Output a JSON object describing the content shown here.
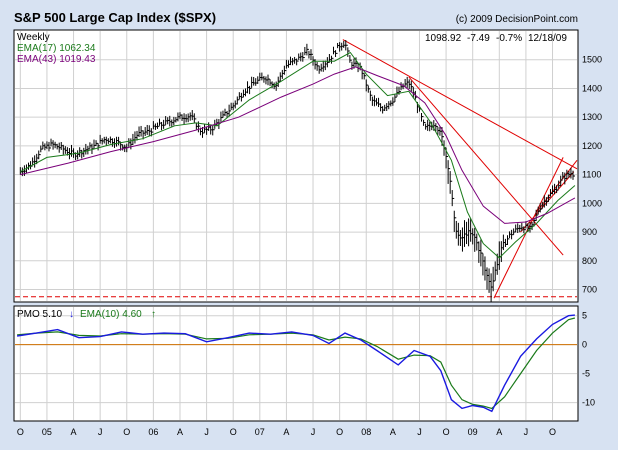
{
  "chart_data": [
    {
      "type": "line",
      "chart_style": "weekly price bars (high-low-close) with moving averages and trendlines",
      "title": "S&P 500 Large Cap Index ($SPX)",
      "copyright": "(c) 2009 DecisionPoint.com",
      "period": "Weekly",
      "quote": {
        "last": "1098.92",
        "change": "-7.49",
        "pct": "-0.7%",
        "date": "12/18/09"
      },
      "indicators": [
        {
          "label": "EMA(17) 1062.34",
          "color": "#1a7a1a"
        },
        {
          "label": "EMA(43) 1019.43",
          "color": "#7a007a"
        }
      ],
      "price_color": "#000000",
      "trendline_color": "#e00000",
      "ylim": [
        660,
        1600
      ],
      "yticks": [
        700,
        800,
        900,
        1000,
        1100,
        1200,
        1300,
        1400,
        1500
      ],
      "y_axis_side": "right",
      "support_level": 675,
      "x_time_range": [
        2004.7,
        2009.98
      ],
      "price_series": [
        [
          2004.75,
          1110
        ],
        [
          2004.85,
          1135
        ],
        [
          2004.95,
          1190
        ],
        [
          2005.05,
          1205
        ],
        [
          2005.15,
          1190
        ],
        [
          2005.25,
          1170
        ],
        [
          2005.35,
          1185
        ],
        [
          2005.45,
          1200
        ],
        [
          2005.55,
          1225
        ],
        [
          2005.65,
          1215
        ],
        [
          2005.75,
          1195
        ],
        [
          2005.85,
          1240
        ],
        [
          2005.95,
          1250
        ],
        [
          2006.05,
          1270
        ],
        [
          2006.15,
          1285
        ],
        [
          2006.25,
          1300
        ],
        [
          2006.35,
          1305
        ],
        [
          2006.45,
          1250
        ],
        [
          2006.55,
          1260
        ],
        [
          2006.65,
          1300
        ],
        [
          2006.75,
          1340
        ],
        [
          2006.85,
          1390
        ],
        [
          2006.95,
          1420
        ],
        [
          2007.05,
          1440
        ],
        [
          2007.15,
          1410
        ],
        [
          2007.25,
          1480
        ],
        [
          2007.35,
          1500
        ],
        [
          2007.45,
          1530
        ],
        [
          2007.55,
          1470
        ],
        [
          2007.65,
          1500
        ],
        [
          2007.75,
          1550
        ],
        [
          2007.8,
          1560
        ],
        [
          2007.85,
          1490
        ],
        [
          2007.95,
          1470
        ],
        [
          2008.05,
          1360
        ],
        [
          2008.15,
          1330
        ],
        [
          2008.25,
          1360
        ],
        [
          2008.35,
          1410
        ],
        [
          2008.4,
          1420
        ],
        [
          2008.45,
          1380
        ],
        [
          2008.55,
          1260
        ],
        [
          2008.65,
          1280
        ],
        [
          2008.72,
          1220
        ],
        [
          2008.78,
          1110
        ],
        [
          2008.83,
          930
        ],
        [
          2008.88,
          870
        ],
        [
          2008.95,
          900
        ],
        [
          2009.02,
          880
        ],
        [
          2009.08,
          820
        ],
        [
          2009.12,
          760
        ],
        [
          2009.18,
          710
        ],
        [
          2009.22,
          780
        ],
        [
          2009.28,
          850
        ],
        [
          2009.35,
          890
        ],
        [
          2009.45,
          920
        ],
        [
          2009.55,
          910
        ],
        [
          2009.62,
          980
        ],
        [
          2009.7,
          1020
        ],
        [
          2009.78,
          1050
        ],
        [
          2009.85,
          1090
        ],
        [
          2009.92,
          1105
        ],
        [
          2009.96,
          1099
        ]
      ],
      "ema_17": [
        [
          2004.75,
          1110
        ],
        [
          2005.0,
          1160
        ],
        [
          2005.3,
          1175
        ],
        [
          2005.6,
          1205
        ],
        [
          2005.9,
          1225
        ],
        [
          2006.2,
          1270
        ],
        [
          2006.4,
          1280
        ],
        [
          2006.6,
          1270
        ],
        [
          2006.9,
          1360
        ],
        [
          2007.2,
          1425
        ],
        [
          2007.5,
          1495
        ],
        [
          2007.7,
          1495
        ],
        [
          2007.85,
          1525
        ],
        [
          2008.0,
          1450
        ],
        [
          2008.2,
          1375
        ],
        [
          2008.4,
          1390
        ],
        [
          2008.6,
          1285
        ],
        [
          2008.8,
          1150
        ],
        [
          2008.95,
          970
        ],
        [
          2009.1,
          860
        ],
        [
          2009.25,
          810
        ],
        [
          2009.4,
          865
        ],
        [
          2009.6,
          930
        ],
        [
          2009.8,
          1010
        ],
        [
          2009.96,
          1062
        ]
      ],
      "ema_43": [
        [
          2004.75,
          1100
        ],
        [
          2005.2,
          1140
        ],
        [
          2005.6,
          1180
        ],
        [
          2006.0,
          1215
        ],
        [
          2006.4,
          1255
        ],
        [
          2006.8,
          1300
        ],
        [
          2007.2,
          1370
        ],
        [
          2007.5,
          1415
        ],
        [
          2007.7,
          1450
        ],
        [
          2007.9,
          1475
        ],
        [
          2008.1,
          1445
        ],
        [
          2008.35,
          1410
        ],
        [
          2008.55,
          1350
        ],
        [
          2008.75,
          1235
        ],
        [
          2008.9,
          1115
        ],
        [
          2009.1,
          990
        ],
        [
          2009.3,
          930
        ],
        [
          2009.5,
          935
        ],
        [
          2009.7,
          965
        ],
        [
          2009.96,
          1019
        ]
      ],
      "trendlines": [
        [
          [
            2007.78,
            1570
          ],
          [
            2009.98,
            1120
          ]
        ],
        [
          [
            2008.4,
            1440
          ],
          [
            2009.85,
            820
          ]
        ],
        [
          [
            2009.2,
            670
          ],
          [
            2009.85,
            1160
          ]
        ],
        [
          [
            2009.6,
            970
          ],
          [
            2009.98,
            1150
          ]
        ],
        [
          [
            2009.45,
            900
          ],
          [
            2009.95,
            1110
          ]
        ]
      ]
    },
    {
      "type": "line",
      "indicators": [
        {
          "label": "PMO 5.10",
          "color": "#1a1ae0",
          "arrow": "↓"
        },
        {
          "label": "EMA(10) 4.60",
          "color": "#1a7a1a",
          "arrow": "↑"
        }
      ],
      "ylim": [
        -13,
        6.5
      ],
      "yticks": [
        -10,
        -5,
        0,
        5
      ],
      "zero_line_color": "#d07000",
      "x_labels": [
        "O",
        "05",
        "A",
        "J",
        "O",
        "06",
        "A",
        "J",
        "O",
        "07",
        "A",
        "J",
        "O",
        "08",
        "A",
        "J",
        "O",
        "09",
        "A",
        "J",
        "O"
      ],
      "x_label_dates": [
        2004.75,
        2005.0,
        2005.25,
        2005.5,
        2005.75,
        2006.0,
        2006.25,
        2006.5,
        2006.75,
        2007.0,
        2007.25,
        2007.5,
        2007.75,
        2008.0,
        2008.25,
        2008.5,
        2008.75,
        2009.0,
        2009.25,
        2009.5,
        2009.75
      ],
      "pmo": [
        [
          2004.72,
          1.5
        ],
        [
          2004.9,
          2.0
        ],
        [
          2005.1,
          2.6
        ],
        [
          2005.3,
          1.2
        ],
        [
          2005.5,
          1.4
        ],
        [
          2005.7,
          2.2
        ],
        [
          2005.9,
          1.8
        ],
        [
          2006.1,
          2.0
        ],
        [
          2006.3,
          1.9
        ],
        [
          2006.5,
          0.5
        ],
        [
          2006.7,
          1.2
        ],
        [
          2006.9,
          2.0
        ],
        [
          2007.1,
          1.8
        ],
        [
          2007.3,
          2.2
        ],
        [
          2007.5,
          1.6
        ],
        [
          2007.65,
          0.2
        ],
        [
          2007.8,
          2.0
        ],
        [
          2007.95,
          0.8
        ],
        [
          2008.1,
          -1.0
        ],
        [
          2008.3,
          -3.5
        ],
        [
          2008.45,
          -1.0
        ],
        [
          2008.6,
          -2.0
        ],
        [
          2008.7,
          -4.5
        ],
        [
          2008.8,
          -9.5
        ],
        [
          2008.9,
          -11.0
        ],
        [
          2009.0,
          -10.5
        ],
        [
          2009.1,
          -10.8
        ],
        [
          2009.18,
          -11.5
        ],
        [
          2009.3,
          -7.0
        ],
        [
          2009.45,
          -2.0
        ],
        [
          2009.6,
          1.0
        ],
        [
          2009.75,
          3.5
        ],
        [
          2009.9,
          5.0
        ],
        [
          2009.96,
          5.1
        ]
      ],
      "ema_10": [
        [
          2004.72,
          1.7
        ],
        [
          2004.9,
          2.0
        ],
        [
          2005.1,
          2.2
        ],
        [
          2005.3,
          1.6
        ],
        [
          2005.5,
          1.5
        ],
        [
          2005.7,
          1.9
        ],
        [
          2005.9,
          1.8
        ],
        [
          2006.1,
          1.9
        ],
        [
          2006.3,
          1.8
        ],
        [
          2006.5,
          1.0
        ],
        [
          2006.7,
          1.1
        ],
        [
          2006.9,
          1.7
        ],
        [
          2007.1,
          1.8
        ],
        [
          2007.3,
          2.0
        ],
        [
          2007.5,
          1.7
        ],
        [
          2007.65,
          0.8
        ],
        [
          2007.8,
          1.3
        ],
        [
          2007.95,
          1.0
        ],
        [
          2008.1,
          -0.3
        ],
        [
          2008.3,
          -2.5
        ],
        [
          2008.45,
          -1.8
        ],
        [
          2008.6,
          -1.9
        ],
        [
          2008.7,
          -3.0
        ],
        [
          2008.8,
          -7.0
        ],
        [
          2008.9,
          -9.5
        ],
        [
          2009.0,
          -10.3
        ],
        [
          2009.1,
          -10.6
        ],
        [
          2009.18,
          -11.0
        ],
        [
          2009.3,
          -9.0
        ],
        [
          2009.45,
          -5.0
        ],
        [
          2009.6,
          -1.0
        ],
        [
          2009.75,
          2.0
        ],
        [
          2009.9,
          4.3
        ],
        [
          2009.96,
          4.6
        ]
      ]
    }
  ]
}
